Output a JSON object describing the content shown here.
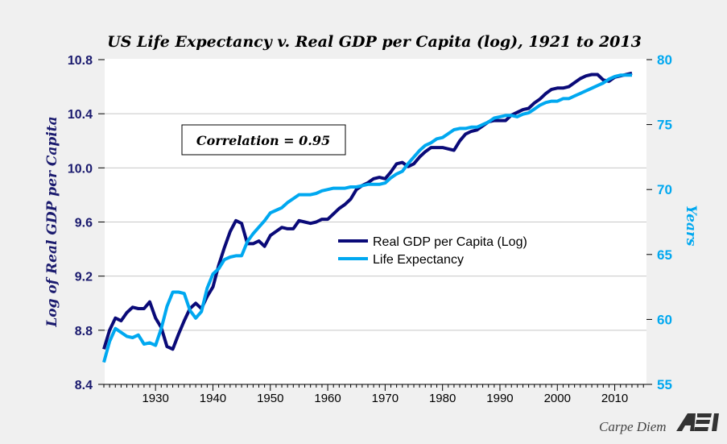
{
  "chart_data": {
    "type": "line",
    "title": "US Life Expectancy v. Real GDP per Capita (log), 1921 to 2013",
    "ylabel_left": "Log of Real GDP per Capita",
    "ylabel_right": "Years",
    "ylim_left": [
      8.4,
      10.8
    ],
    "ylim_right": [
      55,
      80
    ],
    "xlim": [
      1921,
      2013
    ],
    "yticks_left": [
      "8.4",
      "8.8",
      "9.2",
      "9.6",
      "10.0",
      "10.4",
      "10.8"
    ],
    "yticks_right": [
      "55",
      "60",
      "65",
      "70",
      "75",
      "80"
    ],
    "xticks": [
      "1930",
      "1940",
      "1950",
      "1960",
      "1970",
      "1980",
      "1990",
      "2000",
      "2010"
    ],
    "grid": true,
    "legend_placement": "center-right",
    "annotation": "Correlation = 0.95",
    "x_start": 1921,
    "series": [
      {
        "name": "Real GDP per Capita (Log)",
        "axis": "left",
        "color": "#0a0a78",
        "values": [
          8.66,
          8.8,
          8.89,
          8.87,
          8.93,
          8.97,
          8.96,
          8.96,
          9.01,
          8.89,
          8.82,
          8.68,
          8.66,
          8.77,
          8.87,
          8.96,
          9.0,
          8.96,
          9.05,
          9.12,
          9.28,
          9.41,
          9.53,
          9.61,
          9.59,
          9.44,
          9.44,
          9.46,
          9.42,
          9.5,
          9.53,
          9.56,
          9.55,
          9.55,
          9.61,
          9.6,
          9.59,
          9.6,
          9.62,
          9.62,
          9.66,
          9.7,
          9.73,
          9.77,
          9.84,
          9.87,
          9.89,
          9.92,
          9.93,
          9.92,
          9.97,
          10.03,
          10.04,
          10.01,
          10.03,
          10.08,
          10.12,
          10.15,
          10.15,
          10.15,
          10.14,
          10.13,
          10.2,
          10.25,
          10.27,
          10.28,
          10.31,
          10.34,
          10.35,
          10.35,
          10.35,
          10.39,
          10.41,
          10.43,
          10.44,
          10.48,
          10.51,
          10.55,
          10.58,
          10.59,
          10.59,
          10.6,
          10.63,
          10.66,
          10.68,
          10.69,
          10.69,
          10.65,
          10.64,
          10.67,
          10.68,
          10.69,
          10.7
        ]
      },
      {
        "name": "Life Expectancy",
        "axis": "right",
        "color": "#00a8f0",
        "values": [
          56.7,
          58.3,
          59.3,
          59.0,
          58.7,
          58.6,
          58.8,
          58.1,
          58.2,
          58.0,
          59.3,
          61.0,
          62.1,
          62.1,
          62.0,
          60.7,
          60.1,
          60.6,
          62.4,
          63.5,
          63.9,
          64.6,
          64.8,
          64.9,
          64.9,
          66.0,
          66.6,
          67.1,
          67.6,
          68.2,
          68.4,
          68.6,
          69.0,
          69.3,
          69.6,
          69.6,
          69.6,
          69.7,
          69.9,
          70.0,
          70.1,
          70.1,
          70.1,
          70.2,
          70.2,
          70.3,
          70.4,
          70.4,
          70.4,
          70.5,
          70.9,
          71.2,
          71.4,
          72.0,
          72.5,
          73.0,
          73.4,
          73.6,
          73.9,
          74.0,
          74.3,
          74.6,
          74.7,
          74.7,
          74.8,
          74.8,
          75.0,
          75.2,
          75.5,
          75.6,
          75.7,
          75.7,
          75.6,
          75.8,
          75.9,
          76.2,
          76.5,
          76.7,
          76.8,
          76.8,
          77.0,
          77.0,
          77.2,
          77.4,
          77.6,
          77.8,
          78.0,
          78.2,
          78.5,
          78.7,
          78.8,
          78.8,
          78.8
        ]
      }
    ]
  },
  "footer": {
    "brand": "Carpe Diem",
    "logo": "AEI"
  }
}
